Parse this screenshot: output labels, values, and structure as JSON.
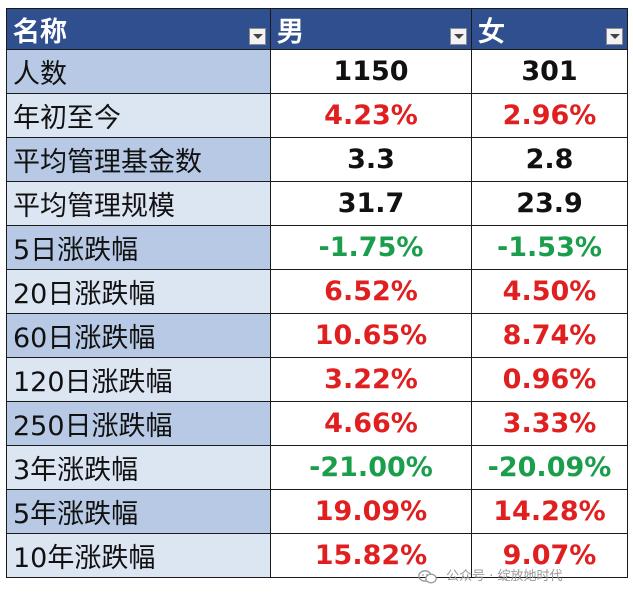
{
  "header": {
    "col1": "名称",
    "col2": "男",
    "col3": "女"
  },
  "colors": {
    "header_bg": "#2f4f8f",
    "positive": "#e02020",
    "negative": "#1a9e4b",
    "neutral": "#111111"
  },
  "rows": [
    {
      "label": "人数",
      "male": "1150",
      "female": "301",
      "male_color": "#111111",
      "female_color": "#111111"
    },
    {
      "label": "年初至今",
      "male": "4.23%",
      "female": "2.96%",
      "male_color": "#e02020",
      "female_color": "#e02020"
    },
    {
      "label": "平均管理基金数",
      "male": "3.3",
      "female": "2.8",
      "male_color": "#111111",
      "female_color": "#111111"
    },
    {
      "label": "平均管理规模",
      "male": "31.7",
      "female": "23.9",
      "male_color": "#111111",
      "female_color": "#111111"
    },
    {
      "label": "5日涨跌幅",
      "male": "-1.75%",
      "female": "-1.53%",
      "male_color": "#1a9e4b",
      "female_color": "#1a9e4b"
    },
    {
      "label": "20日涨跌幅",
      "male": "6.52%",
      "female": "4.50%",
      "male_color": "#e02020",
      "female_color": "#e02020"
    },
    {
      "label": "60日涨跌幅",
      "male": "10.65%",
      "female": "8.74%",
      "male_color": "#e02020",
      "female_color": "#e02020"
    },
    {
      "label": "120日涨跌幅",
      "male": "3.22%",
      "female": "0.96%",
      "male_color": "#e02020",
      "female_color": "#e02020"
    },
    {
      "label": "250日涨跌幅",
      "male": "4.66%",
      "female": "3.33%",
      "male_color": "#e02020",
      "female_color": "#e02020"
    },
    {
      "label": "3年涨跌幅",
      "male": "-21.00%",
      "female": "-20.09%",
      "male_color": "#1a9e4b",
      "female_color": "#1a9e4b"
    },
    {
      "label": "5年涨跌幅",
      "male": "19.09%",
      "female": "14.28%",
      "male_color": "#e02020",
      "female_color": "#e02020"
    },
    {
      "label": "10年涨跌幅",
      "male": "15.82%",
      "female": "9.07%",
      "male_color": "#e02020",
      "female_color": "#e02020"
    }
  ],
  "watermark": {
    "icon": "wechat-icon",
    "text": "公众号 · 绽放她时代"
  }
}
